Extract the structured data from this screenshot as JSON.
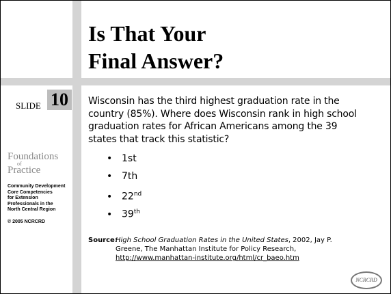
{
  "header": {
    "title": [
      "Is That Your",
      "Final Answer?"
    ]
  },
  "slide": {
    "label": "SLIDE",
    "number": "10"
  },
  "sidebar": {
    "logo": [
      "Foundations",
      "of",
      "Practice"
    ],
    "text": [
      "Community Development",
      "Core Competencies",
      "for Extension",
      "Professionals in the",
      "North Central Region"
    ],
    "copyright": "© 2005 NCRCRD"
  },
  "body": {
    "question": "Wisconsin has the third highest graduation rate in the country (85%). Where does Wisconsin rank in high school graduation rates for African Americans among the 39 states that track this statistic?",
    "options": [
      {
        "text": "1st"
      },
      {
        "text": "7th"
      },
      {
        "text": "22",
        "sup": "nd"
      },
      {
        "text": "39",
        "sup": "th"
      }
    ]
  },
  "source": {
    "label": "Source:",
    "title": "High School Graduation Rates in the United States",
    "rest": ", 2002, Jay P. Greene, The Manhattan Institute for Policy Research,",
    "url": "http://www.manhattan-institute.org/html/cr_baeo.htm"
  },
  "footer": {
    "logo": "NCRCRD"
  }
}
